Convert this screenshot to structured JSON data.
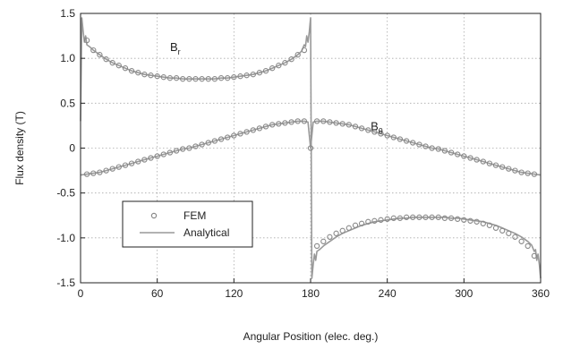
{
  "chart_data": {
    "type": "line",
    "xlabel": "Angular Position (elec. deg.)",
    "ylabel": "Flux density (T)",
    "xlim": [
      0,
      360
    ],
    "ylim": [
      -1.5,
      1.5
    ],
    "xticks": [
      0,
      60,
      120,
      180,
      240,
      300,
      360
    ],
    "xtick_labels": [
      "0",
      "60",
      "120",
      "180",
      "240",
      "300",
      "360"
    ],
    "yticks": [
      -1.5,
      -1.0,
      -0.5,
      0,
      0.5,
      1.0,
      1.5
    ],
    "ytick_labels": [
      "-1.5",
      "-1.0",
      "-0.5",
      "0",
      "0.5",
      "1.0",
      "1.5"
    ],
    "grid": true,
    "legend_position": "lower-left",
    "legend": {
      "fem_label": "FEM",
      "analytical_label": "Analytical"
    },
    "annotations": {
      "br_main": "B",
      "br_sub": "r",
      "bt_main": "B",
      "bt_sub": "θ"
    },
    "series": [
      {
        "name": "B_r FEM",
        "marker": "circle",
        "x": [
          5,
          10,
          15,
          20,
          25,
          30,
          35,
          40,
          45,
          50,
          55,
          60,
          65,
          70,
          75,
          80,
          85,
          90,
          95,
          100,
          105,
          110,
          115,
          120,
          125,
          130,
          135,
          140,
          145,
          150,
          155,
          160,
          165,
          170,
          175,
          185,
          190,
          195,
          200,
          205,
          210,
          215,
          220,
          225,
          230,
          235,
          240,
          245,
          250,
          255,
          260,
          265,
          270,
          275,
          280,
          285,
          290,
          295,
          300,
          305,
          310,
          315,
          320,
          325,
          330,
          335,
          340,
          345,
          350,
          355
        ],
        "y": [
          1.2,
          1.09,
          1.04,
          0.99,
          0.95,
          0.92,
          0.89,
          0.86,
          0.84,
          0.82,
          0.81,
          0.8,
          0.79,
          0.78,
          0.78,
          0.77,
          0.77,
          0.77,
          0.77,
          0.77,
          0.77,
          0.78,
          0.78,
          0.79,
          0.8,
          0.81,
          0.82,
          0.84,
          0.86,
          0.89,
          0.92,
          0.95,
          0.99,
          1.04,
          1.09,
          -1.09,
          -1.04,
          -0.99,
          -0.95,
          -0.92,
          -0.89,
          -0.86,
          -0.84,
          -0.82,
          -0.81,
          -0.8,
          -0.79,
          -0.78,
          -0.78,
          -0.77,
          -0.77,
          -0.77,
          -0.77,
          -0.77,
          -0.77,
          -0.78,
          -0.78,
          -0.79,
          -0.8,
          -0.81,
          -0.82,
          -0.84,
          -0.86,
          -0.89,
          -0.92,
          -0.95,
          -0.99,
          -1.04,
          -1.09,
          -1.2
        ]
      },
      {
        "name": "B_theta FEM",
        "marker": "circle",
        "x": [
          5,
          10,
          15,
          20,
          25,
          30,
          35,
          40,
          45,
          50,
          55,
          60,
          65,
          70,
          75,
          80,
          85,
          90,
          95,
          100,
          105,
          110,
          115,
          120,
          125,
          130,
          135,
          140,
          145,
          150,
          155,
          160,
          165,
          170,
          175,
          180,
          185,
          190,
          195,
          200,
          205,
          210,
          215,
          220,
          225,
          230,
          235,
          240,
          245,
          250,
          255,
          260,
          265,
          270,
          275,
          280,
          285,
          290,
          295,
          300,
          305,
          310,
          315,
          320,
          325,
          330,
          335,
          340,
          345,
          350,
          355
        ],
        "y": [
          -0.29,
          -0.28,
          -0.27,
          -0.25,
          -0.23,
          -0.21,
          -0.19,
          -0.17,
          -0.15,
          -0.13,
          -0.11,
          -0.09,
          -0.07,
          -0.05,
          -0.03,
          -0.01,
          0.0,
          0.02,
          0.04,
          0.06,
          0.08,
          0.1,
          0.12,
          0.14,
          0.16,
          0.18,
          0.2,
          0.22,
          0.24,
          0.26,
          0.27,
          0.28,
          0.29,
          0.3,
          0.3,
          0.0,
          0.3,
          0.3,
          0.29,
          0.28,
          0.27,
          0.26,
          0.24,
          0.22,
          0.2,
          0.18,
          0.16,
          0.14,
          0.12,
          0.1,
          0.08,
          0.06,
          0.04,
          0.02,
          0.0,
          -0.01,
          -0.03,
          -0.05,
          -0.07,
          -0.09,
          -0.11,
          -0.13,
          -0.15,
          -0.17,
          -0.19,
          -0.21,
          -0.23,
          -0.25,
          -0.27,
          -0.28,
          -0.29
        ]
      },
      {
        "name": "B_r Analytical",
        "marker": "none",
        "x": [
          0,
          1,
          2,
          3,
          4,
          5,
          7,
          10,
          15,
          20,
          25,
          30,
          35,
          40,
          45,
          50,
          55,
          60,
          65,
          70,
          75,
          80,
          85,
          90,
          95,
          100,
          105,
          110,
          115,
          120,
          125,
          130,
          135,
          140,
          145,
          150,
          155,
          160,
          165,
          170,
          173,
          175,
          176,
          177,
          178,
          179,
          180,
          181,
          182,
          183,
          184,
          185,
          187,
          190,
          195,
          200,
          205,
          210,
          215,
          220,
          225,
          230,
          235,
          240,
          245,
          250,
          255,
          260,
          265,
          270,
          275,
          280,
          285,
          290,
          295,
          300,
          305,
          310,
          315,
          320,
          325,
          330,
          335,
          340,
          345,
          350,
          353,
          355,
          356,
          357,
          358,
          359,
          360
        ],
        "y": [
          0.3,
          1.45,
          1.3,
          1.18,
          1.25,
          1.15,
          1.13,
          1.09,
          1.04,
          0.99,
          0.95,
          0.92,
          0.89,
          0.86,
          0.84,
          0.82,
          0.81,
          0.8,
          0.79,
          0.78,
          0.78,
          0.77,
          0.77,
          0.77,
          0.77,
          0.77,
          0.77,
          0.78,
          0.78,
          0.79,
          0.8,
          0.81,
          0.82,
          0.84,
          0.86,
          0.89,
          0.92,
          0.95,
          0.99,
          1.04,
          1.08,
          1.15,
          1.13,
          1.25,
          1.18,
          1.3,
          1.45,
          -1.45,
          -1.3,
          -1.18,
          -1.25,
          -1.15,
          -1.13,
          -1.09,
          -1.04,
          -0.99,
          -0.95,
          -0.92,
          -0.89,
          -0.86,
          -0.84,
          -0.82,
          -0.81,
          -0.8,
          -0.79,
          -0.78,
          -0.78,
          -0.77,
          -0.77,
          -0.77,
          -0.77,
          -0.77,
          -0.77,
          -0.78,
          -0.78,
          -0.79,
          -0.8,
          -0.81,
          -0.82,
          -0.84,
          -0.86,
          -0.89,
          -0.92,
          -0.95,
          -0.99,
          -1.04,
          -1.08,
          -1.15,
          -1.13,
          -1.25,
          -1.18,
          -1.3,
          -1.45
        ]
      },
      {
        "name": "B_theta Analytical",
        "marker": "none",
        "x": [
          0,
          5,
          10,
          15,
          20,
          25,
          30,
          35,
          40,
          45,
          50,
          55,
          60,
          65,
          70,
          75,
          80,
          85,
          90,
          95,
          100,
          105,
          110,
          115,
          120,
          125,
          130,
          135,
          140,
          145,
          150,
          155,
          160,
          165,
          170,
          175,
          178,
          180,
          182,
          185,
          190,
          195,
          200,
          205,
          210,
          215,
          220,
          225,
          230,
          235,
          240,
          245,
          250,
          255,
          260,
          265,
          270,
          275,
          280,
          285,
          290,
          295,
          300,
          305,
          310,
          315,
          320,
          325,
          330,
          335,
          340,
          345,
          350,
          355,
          360
        ],
        "y": [
          -0.3,
          -0.29,
          -0.28,
          -0.27,
          -0.25,
          -0.23,
          -0.21,
          -0.19,
          -0.17,
          -0.15,
          -0.13,
          -0.11,
          -0.09,
          -0.07,
          -0.05,
          -0.03,
          -0.01,
          0.0,
          0.02,
          0.04,
          0.06,
          0.08,
          0.1,
          0.12,
          0.14,
          0.16,
          0.18,
          0.2,
          0.22,
          0.24,
          0.26,
          0.27,
          0.28,
          0.29,
          0.3,
          0.3,
          0.29,
          0.0,
          0.29,
          0.3,
          0.3,
          0.29,
          0.28,
          0.27,
          0.26,
          0.24,
          0.22,
          0.2,
          0.18,
          0.16,
          0.14,
          0.12,
          0.1,
          0.08,
          0.06,
          0.04,
          0.02,
          0.0,
          -0.01,
          -0.03,
          -0.05,
          -0.07,
          -0.09,
          -0.11,
          -0.13,
          -0.15,
          -0.17,
          -0.19,
          -0.21,
          -0.23,
          -0.25,
          -0.27,
          -0.28,
          -0.29,
          -0.3
        ]
      }
    ]
  }
}
